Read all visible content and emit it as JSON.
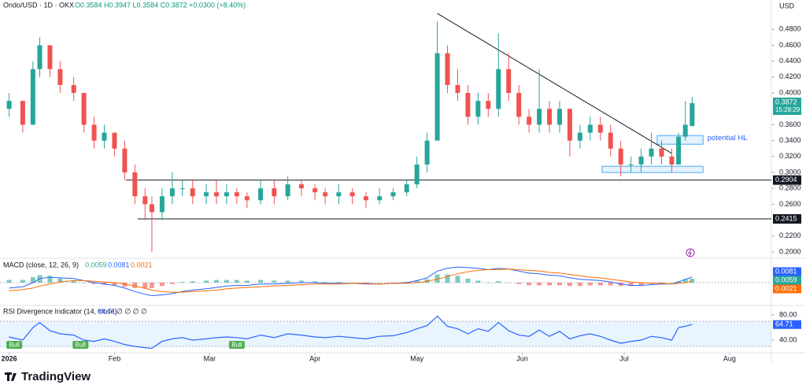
{
  "chart_data": {
    "type": "candlestick",
    "title": "Ondo/USD · 1D · OKX",
    "quote": "O0.3584 H0.3947 L0.3584 C0.3872 +0.0300 (+8.40%)",
    "currency": "USD",
    "up_color": "#26a69a",
    "down_color": "#ef5350",
    "x": [
      0,
      4,
      7,
      9,
      12,
      15,
      19,
      22,
      25,
      28,
      31,
      34,
      37,
      40,
      42,
      45,
      48,
      51,
      54,
      58,
      61,
      64,
      67,
      70,
      74,
      78,
      82,
      86,
      90,
      93,
      97,
      101,
      105,
      109,
      113,
      117,
      120,
      123,
      126,
      129,
      132,
      135,
      138,
      141,
      144,
      147,
      150,
      153,
      156,
      159,
      162,
      165,
      168,
      171,
      174,
      177,
      180,
      183,
      186,
      189,
      192,
      195,
      197,
      199,
      201
    ],
    "candles": [
      [
        0.38,
        0.4,
        0.37,
        0.39
      ],
      [
        0.39,
        0.39,
        0.35,
        0.36
      ],
      [
        0.36,
        0.44,
        0.36,
        0.43
      ],
      [
        0.43,
        0.47,
        0.42,
        0.46
      ],
      [
        0.46,
        0.46,
        0.42,
        0.43
      ],
      [
        0.43,
        0.44,
        0.4,
        0.41
      ],
      [
        0.41,
        0.42,
        0.39,
        0.4
      ],
      [
        0.4,
        0.4,
        0.35,
        0.36
      ],
      [
        0.36,
        0.37,
        0.33,
        0.34
      ],
      [
        0.34,
        0.36,
        0.33,
        0.35
      ],
      [
        0.35,
        0.35,
        0.32,
        0.33
      ],
      [
        0.33,
        0.34,
        0.29,
        0.3
      ],
      [
        0.3,
        0.31,
        0.26,
        0.27
      ],
      [
        0.27,
        0.28,
        0.24,
        0.26
      ],
      [
        0.26,
        0.27,
        0.2,
        0.25
      ],
      [
        0.25,
        0.28,
        0.24,
        0.27
      ],
      [
        0.27,
        0.3,
        0.26,
        0.28
      ],
      [
        0.28,
        0.29,
        0.27,
        0.28
      ],
      [
        0.28,
        0.29,
        0.26,
        0.27
      ],
      [
        0.27,
        0.285,
        0.26,
        0.275
      ],
      [
        0.275,
        0.29,
        0.26,
        0.27
      ],
      [
        0.27,
        0.285,
        0.26,
        0.275
      ],
      [
        0.275,
        0.28,
        0.26,
        0.27
      ],
      [
        0.27,
        0.275,
        0.255,
        0.265
      ],
      [
        0.265,
        0.29,
        0.26,
        0.28
      ],
      [
        0.28,
        0.29,
        0.26,
        0.27
      ],
      [
        0.27,
        0.295,
        0.265,
        0.285
      ],
      [
        0.285,
        0.29,
        0.27,
        0.28
      ],
      [
        0.28,
        0.285,
        0.265,
        0.275
      ],
      [
        0.275,
        0.28,
        0.26,
        0.27
      ],
      [
        0.27,
        0.285,
        0.26,
        0.275
      ],
      [
        0.275,
        0.28,
        0.26,
        0.27
      ],
      [
        0.27,
        0.275,
        0.255,
        0.265
      ],
      [
        0.265,
        0.28,
        0.26,
        0.27
      ],
      [
        0.27,
        0.28,
        0.265,
        0.275
      ],
      [
        0.275,
        0.29,
        0.27,
        0.285
      ],
      [
        0.285,
        0.32,
        0.28,
        0.31
      ],
      [
        0.31,
        0.35,
        0.3,
        0.34
      ],
      [
        0.34,
        0.49,
        0.34,
        0.45
      ],
      [
        0.45,
        0.46,
        0.4,
        0.41
      ],
      [
        0.41,
        0.43,
        0.39,
        0.4
      ],
      [
        0.4,
        0.41,
        0.36,
        0.37
      ],
      [
        0.37,
        0.4,
        0.36,
        0.39
      ],
      [
        0.39,
        0.4,
        0.37,
        0.38
      ],
      [
        0.38,
        0.475,
        0.37,
        0.43
      ],
      [
        0.43,
        0.45,
        0.39,
        0.4
      ],
      [
        0.4,
        0.41,
        0.36,
        0.37
      ],
      [
        0.37,
        0.38,
        0.35,
        0.36
      ],
      [
        0.36,
        0.43,
        0.35,
        0.38
      ],
      [
        0.38,
        0.39,
        0.35,
        0.36
      ],
      [
        0.36,
        0.39,
        0.35,
        0.38
      ],
      [
        0.38,
        0.38,
        0.32,
        0.34
      ],
      [
        0.34,
        0.36,
        0.33,
        0.35
      ],
      [
        0.35,
        0.37,
        0.34,
        0.36
      ],
      [
        0.36,
        0.37,
        0.34,
        0.35
      ],
      [
        0.35,
        0.36,
        0.32,
        0.33
      ],
      [
        0.33,
        0.34,
        0.295,
        0.31
      ],
      [
        0.31,
        0.32,
        0.3,
        0.31
      ],
      [
        0.31,
        0.33,
        0.3,
        0.32
      ],
      [
        0.32,
        0.35,
        0.31,
        0.33
      ],
      [
        0.33,
        0.34,
        0.31,
        0.32
      ],
      [
        0.32,
        0.33,
        0.3,
        0.31
      ],
      [
        0.31,
        0.35,
        0.31,
        0.345
      ],
      [
        0.345,
        0.39,
        0.34,
        0.36
      ],
      [
        0.3584,
        0.3947,
        0.3584,
        0.3872
      ]
    ],
    "xlim": [
      -2,
      222
    ],
    "xticks": [
      {
        "value": 0,
        "label": "2026"
      },
      {
        "value": 31,
        "label": "Feb"
      },
      {
        "value": 59,
        "label": "Mar"
      },
      {
        "value": 90,
        "label": "Apr"
      },
      {
        "value": 120,
        "label": "May"
      },
      {
        "value": 151,
        "label": "Jun"
      },
      {
        "value": 181,
        "label": "Jul"
      },
      {
        "value": 212,
        "label": "Aug"
      }
    ],
    "ylim": [
      0.195,
      0.509
    ],
    "yticks": [
      {
        "value": 0.48,
        "label": "0.4800"
      },
      {
        "value": 0.46,
        "label": "0.4600"
      },
      {
        "value": 0.44,
        "label": "0.4400"
      },
      {
        "value": 0.42,
        "label": "0.4200"
      },
      {
        "value": 0.4,
        "label": "0.4000"
      },
      {
        "value": 0.36,
        "label": "0.3600"
      },
      {
        "value": 0.34,
        "label": "0.3400"
      },
      {
        "value": 0.32,
        "label": "0.3200"
      },
      {
        "value": 0.3,
        "label": "0.3000"
      },
      {
        "value": 0.28,
        "label": "0.2800"
      },
      {
        "value": 0.26,
        "label": "0.2600"
      },
      {
        "value": 0.22,
        "label": "0.2200"
      },
      {
        "value": 0.2,
        "label": "0.2000"
      }
    ],
    "last_price_countdown": "15:28:29",
    "levels": [
      {
        "value": 0.2904,
        "from": 34.4
      },
      {
        "value": 0.2415,
        "from": 37.8
      }
    ],
    "trendline": {
      "x": [
        126,
        195
      ],
      "y": [
        0.5,
        0.324
      ]
    },
    "zones": [
      {
        "x": [
          190.7,
          204.2
        ],
        "y": [
          0.3355,
          0.3464
        ]
      },
      {
        "x": [
          174.5,
          204.2
        ],
        "y": [
          0.2999,
          0.3078
        ]
      }
    ],
    "annotation": {
      "text": "potential HL",
      "x": 205.5,
      "y": 0.343
    },
    "macd": {
      "title": "MACD (close, 12, 26, 9)",
      "ylim": [
        -0.03,
        0.03
      ],
      "macd_color": "#2962ff",
      "signal_color": "#ff6d00",
      "hist_up_color": "#26a69a",
      "hist_down_color": "#ef5350",
      "histogram": [
        0.004,
        0.004,
        0.008,
        0.011,
        0.01,
        0.006,
        0.003,
        0.0,
        -0.002,
        -0.003,
        -0.004,
        -0.006,
        -0.008,
        -0.009,
        -0.008,
        -0.005,
        -0.002,
        0.001,
        0.002,
        0.003,
        0.004,
        0.004,
        0.004,
        0.003,
        0.004,
        0.003,
        0.003,
        0.003,
        0.002,
        0.001,
        0.001,
        0.0,
        -0.001,
        0.0,
        0.0,
        0.001,
        0.003,
        0.005,
        0.012,
        0.012,
        0.01,
        0.006,
        0.003,
        0.0,
        0.002,
        0.0,
        -0.002,
        -0.004,
        -0.004,
        -0.004,
        -0.004,
        -0.005,
        -0.005,
        -0.004,
        -0.004,
        -0.004,
        -0.005,
        -0.005,
        -0.004,
        -0.002,
        -0.001,
        0.0,
        0.002,
        0.005,
        0.0059
      ],
      "macd": [
        -0.008,
        -0.006,
        0.0,
        0.006,
        0.008,
        0.007,
        0.006,
        0.003,
        0.0,
        -0.002,
        -0.004,
        -0.008,
        -0.013,
        -0.017,
        -0.019,
        -0.018,
        -0.016,
        -0.013,
        -0.011,
        -0.009,
        -0.007,
        -0.005,
        -0.004,
        -0.004,
        -0.002,
        -0.002,
        -0.001,
        0.0,
        0.0,
        -0.001,
        -0.001,
        -0.001,
        -0.002,
        -0.002,
        -0.001,
        0.0,
        0.003,
        0.007,
        0.017,
        0.021,
        0.023,
        0.022,
        0.021,
        0.019,
        0.021,
        0.02,
        0.017,
        0.014,
        0.013,
        0.011,
        0.01,
        0.007,
        0.005,
        0.004,
        0.003,
        0.001,
        -0.002,
        -0.004,
        -0.004,
        -0.003,
        -0.002,
        -0.002,
        0.001,
        0.005,
        0.0081
      ],
      "signal": [
        -0.012,
        -0.01,
        -0.008,
        -0.005,
        -0.002,
        0.001,
        0.003,
        0.003,
        0.002,
        0.001,
        0.0,
        -0.002,
        -0.005,
        -0.008,
        -0.011,
        -0.013,
        -0.014,
        -0.014,
        -0.013,
        -0.012,
        -0.011,
        -0.009,
        -0.008,
        -0.007,
        -0.006,
        -0.005,
        -0.004,
        -0.003,
        -0.002,
        -0.002,
        -0.002,
        -0.001,
        -0.001,
        -0.002,
        -0.001,
        -0.001,
        0.0,
        0.002,
        0.005,
        0.009,
        0.013,
        0.016,
        0.018,
        0.019,
        0.019,
        0.02,
        0.019,
        0.018,
        0.017,
        0.015,
        0.014,
        0.012,
        0.01,
        0.008,
        0.007,
        0.005,
        0.003,
        0.001,
        0.0,
        -0.001,
        -0.001,
        -0.002,
        -0.001,
        0.0,
        0.0021
      ]
    },
    "rsi": {
      "title": "RSI Divergence Indicator (14, close)",
      "flags": "∅ ∅ ∅ ∅",
      "color": "#2962ff",
      "ylim": [
        20,
        90
      ],
      "band": [
        30,
        70
      ],
      "yticks": [
        {
          "value": 80,
          "label": "80.00"
        },
        {
          "value": 40,
          "label": "40.00"
        }
      ],
      "values": [
        45,
        40,
        60,
        68,
        55,
        50,
        48,
        40,
        38,
        42,
        38,
        33,
        30,
        28,
        27,
        38,
        42,
        44,
        40,
        42,
        44,
        45,
        44,
        42,
        48,
        44,
        50,
        48,
        45,
        44,
        46,
        44,
        42,
        46,
        47,
        52,
        58,
        63,
        78,
        62,
        58,
        50,
        58,
        54,
        68,
        55,
        48,
        46,
        56,
        46,
        54,
        42,
        47,
        50,
        46,
        40,
        35,
        38,
        40,
        46,
        44,
        40,
        60,
        62,
        64.71
      ],
      "bull_labels": [
        {
          "text": "Bull",
          "x": 1.5
        },
        {
          "text": "Bull",
          "x": 21
        },
        {
          "text": "Bull",
          "x": 67
        }
      ]
    },
    "brand": "TradingView"
  }
}
